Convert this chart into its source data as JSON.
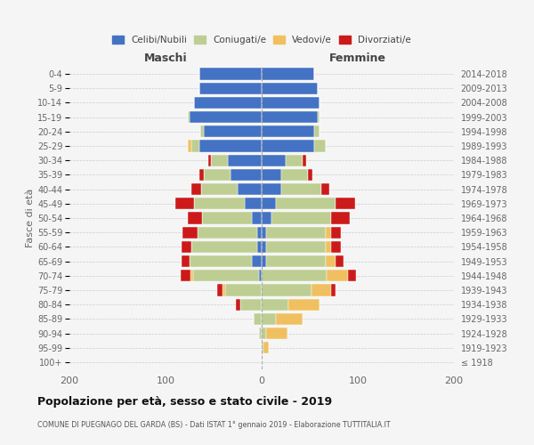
{
  "age_groups": [
    "100+",
    "95-99",
    "90-94",
    "85-89",
    "80-84",
    "75-79",
    "70-74",
    "65-69",
    "60-64",
    "55-59",
    "50-54",
    "45-49",
    "40-44",
    "35-39",
    "30-34",
    "25-29",
    "20-24",
    "15-19",
    "10-14",
    "5-9",
    "0-4"
  ],
  "birth_years": [
    "≤ 1918",
    "1919-1923",
    "1924-1928",
    "1929-1933",
    "1934-1938",
    "1939-1943",
    "1944-1948",
    "1949-1953",
    "1954-1958",
    "1959-1963",
    "1964-1968",
    "1969-1973",
    "1974-1978",
    "1979-1983",
    "1984-1988",
    "1989-1993",
    "1994-1998",
    "1999-2003",
    "2004-2008",
    "2009-2013",
    "2014-2018"
  ],
  "maschi": {
    "celibi": [
      0,
      0,
      0,
      0,
      0,
      0,
      3,
      10,
      5,
      5,
      10,
      18,
      25,
      32,
      35,
      65,
      60,
      75,
      70,
      65,
      65
    ],
    "coniugati": [
      0,
      0,
      3,
      8,
      22,
      38,
      68,
      65,
      68,
      62,
      52,
      52,
      38,
      28,
      18,
      8,
      4,
      2,
      0,
      0,
      0
    ],
    "vedovi": [
      0,
      0,
      0,
      0,
      0,
      3,
      3,
      0,
      0,
      0,
      0,
      0,
      0,
      0,
      0,
      4,
      0,
      0,
      0,
      0,
      0
    ],
    "divorziati": [
      0,
      0,
      0,
      0,
      5,
      5,
      10,
      8,
      10,
      15,
      15,
      20,
      10,
      5,
      3,
      0,
      0,
      0,
      0,
      0,
      0
    ]
  },
  "femmine": {
    "nubili": [
      0,
      0,
      0,
      0,
      0,
      0,
      0,
      5,
      5,
      5,
      10,
      15,
      20,
      20,
      25,
      55,
      55,
      58,
      60,
      58,
      55
    ],
    "coniugate": [
      0,
      2,
      5,
      15,
      28,
      52,
      68,
      62,
      62,
      62,
      62,
      62,
      42,
      28,
      18,
      12,
      5,
      2,
      0,
      0,
      0
    ],
    "vedove": [
      0,
      5,
      22,
      28,
      32,
      20,
      22,
      10,
      5,
      5,
      0,
      0,
      0,
      0,
      0,
      0,
      0,
      0,
      0,
      0,
      0
    ],
    "divorziate": [
      0,
      0,
      0,
      0,
      0,
      5,
      8,
      8,
      10,
      10,
      20,
      20,
      8,
      5,
      3,
      0,
      0,
      0,
      0,
      0,
      0
    ]
  },
  "colors": {
    "celibi_nubili": "#4472C4",
    "coniugati": "#BECE93",
    "vedovi": "#F0C060",
    "divorziati": "#CC1A1A"
  },
  "xlim": 200,
  "title": "Popolazione per età, sesso e stato civile - 2019",
  "subtitle": "COMUNE DI PUEGNAGO DEL GARDA (BS) - Dati ISTAT 1° gennaio 2019 - Elaborazione TUTTITALIA.IT",
  "ylabel_left": "Fasce di età",
  "xlabel_maschi": "Maschi",
  "xlabel_femmine": "Femmine",
  "bg_color": "#f5f5f5",
  "legend_labels": [
    "Celibi/Nubili",
    "Coniugati/e",
    "Vedovi/e",
    "Divorziati/e"
  ]
}
